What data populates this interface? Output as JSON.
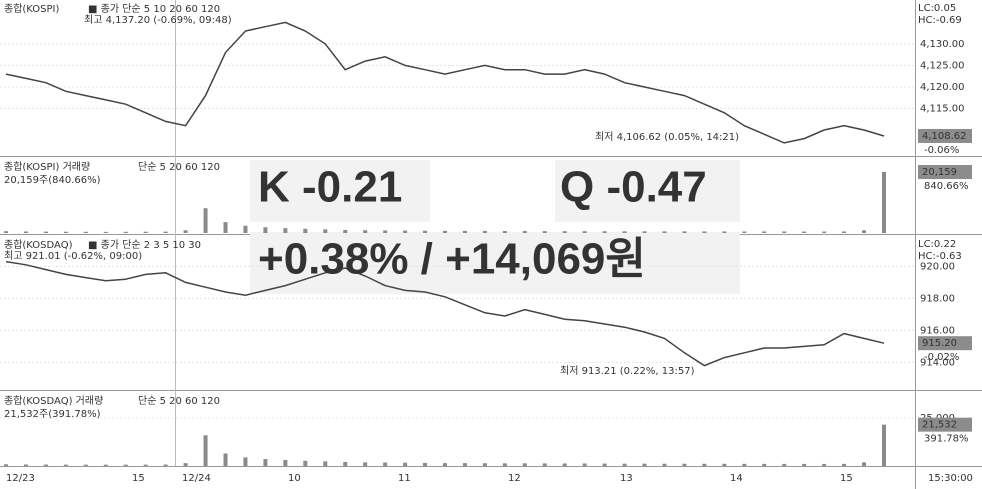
{
  "chart_data": [
    {
      "type": "line",
      "title": "종합(KOSPI)",
      "indicator": "■ 종가 단순 5 10 20 60 120",
      "high_label": "최고 4,137.20 (-0.69%, 09:48)",
      "low_label": "최저 4,106.62 (0.05%, 14:21)",
      "lc": "LC:0.05",
      "hc": "HC:-0.69",
      "last_label": "4,108.62",
      "last_change": "-0.06%",
      "color": "#444444",
      "ylim": [
        4104.2,
        4140.2
      ],
      "yticks": [
        {
          "value": 4130,
          "label": "4,130.00"
        },
        {
          "value": 4125,
          "label": "4,125.00"
        },
        {
          "value": 4120,
          "label": "4,120.00"
        },
        {
          "value": 4115,
          "label": "4,115.00"
        }
      ],
      "values": [
        4123,
        4122,
        4121,
        4119,
        4118,
        4117,
        4116,
        4114,
        4112,
        4111,
        4118,
        4128,
        4133,
        4134,
        4135,
        4133,
        4130,
        4124,
        4126,
        4127,
        4125,
        4124,
        4123,
        4124,
        4125,
        4124,
        4124,
        4123,
        4123,
        4124,
        4123,
        4121,
        4120,
        4119,
        4118,
        4116,
        4114,
        4111,
        4109,
        4107,
        4108,
        4110,
        4111,
        4110,
        4108.62
      ]
    },
    {
      "type": "bar",
      "title": "종합(KOSPI) 거래량",
      "indicator": "단순 5 20 60 120",
      "summary": "20,159주(840.66%)",
      "last_label": "20,159",
      "last_change": "840.66%",
      "color": "#8a8a8a",
      "ylim": [
        0,
        24800
      ],
      "yticks": [],
      "values": [
        600,
        500,
        450,
        420,
        400,
        380,
        400,
        420,
        450,
        900,
        8200,
        3600,
        2400,
        1900,
        1600,
        1400,
        1200,
        1000,
        900,
        850,
        800,
        750,
        700,
        700,
        680,
        650,
        650,
        620,
        600,
        600,
        580,
        560,
        560,
        540,
        540,
        520,
        520,
        500,
        500,
        500,
        480,
        480,
        500,
        900,
        20159
      ]
    },
    {
      "type": "line",
      "title": "종합(KOSDAQ)",
      "indicator": "■ 종가 단순 2 3 5 10 30",
      "high_label": "최고 921.01 (-0.62%, 09:00)",
      "low_label": "최저 913.21 (0.22%, 13:57)",
      "lc": "LC:0.22",
      "hc": "HC:-0.63",
      "last_label": "915.20",
      "last_change": "-0.02%",
      "color": "#444444",
      "ylim": [
        912.4,
        921.9
      ],
      "yticks": [
        {
          "value": 920,
          "label": "920.00"
        },
        {
          "value": 918,
          "label": "918.00"
        },
        {
          "value": 916,
          "label": "916.00"
        },
        {
          "value": 914,
          "label": "914.00"
        }
      ],
      "values": [
        920.3,
        920.1,
        919.8,
        919.5,
        919.3,
        919.1,
        919.2,
        919.5,
        919.6,
        919.0,
        918.7,
        918.4,
        918.2,
        918.5,
        918.8,
        919.2,
        919.6,
        919.9,
        919.4,
        918.8,
        918.5,
        918.4,
        918.1,
        917.6,
        917.1,
        916.9,
        917.3,
        917.0,
        916.7,
        916.6,
        916.4,
        916.2,
        915.9,
        915.5,
        914.6,
        913.8,
        914.3,
        914.6,
        914.9,
        914.9,
        915.0,
        915.1,
        915.8,
        915.5,
        915.2
      ]
    },
    {
      "type": "bar",
      "title": "종합(KOSDAQ) 거래량",
      "indicator": "단순 5 20 60 120",
      "summary": "21,532주(391.78%)",
      "last_label": "21,532",
      "last_change": "391.78%",
      "color": "#8a8a8a",
      "ylim": [
        0,
        38540
      ],
      "yticks": [
        {
          "value": 25000,
          "label": "25,000"
        }
      ],
      "values": [
        900,
        800,
        760,
        720,
        700,
        680,
        700,
        720,
        760,
        1500,
        16000,
        6500,
        4500,
        3600,
        3100,
        2700,
        2400,
        2100,
        1900,
        1800,
        1700,
        1600,
        1500,
        1500,
        1450,
        1400,
        1400,
        1350,
        1300,
        1300,
        1250,
        1200,
        1200,
        1180,
        1160,
        1150,
        1150,
        1120,
        1100,
        1100,
        1080,
        1080,
        1100,
        1900,
        21532
      ]
    }
  ],
  "x_axis_labels": [
    "12/23",
    "15",
    "12/24",
    "10",
    "11",
    "12",
    "13",
    "14",
    "15",
    "15:30:00"
  ],
  "overlay": {
    "kospi": "K -0.21",
    "kosdaq": "Q -0.47",
    "pnl": "+0.38% / +14,069원"
  }
}
